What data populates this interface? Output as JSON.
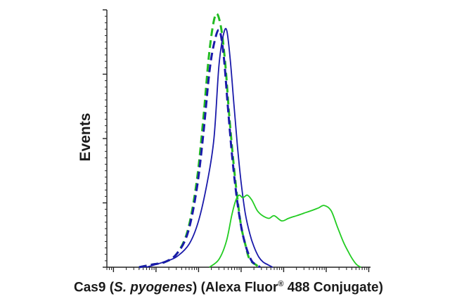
{
  "chart_data": {
    "type": "line",
    "title": "",
    "ylabel": "Events",
    "xlabel": {
      "prefix": "Cas9 (",
      "italic": "S. pyogenes",
      "middle": ") (Alexa Fluor",
      "sup": "®",
      "suffix": " 488 Conjugate)"
    },
    "x_scale": "log",
    "xlim": [
      0.7,
      1100000
    ],
    "ylim": [
      0,
      100
    ],
    "grid": false,
    "legend": "none",
    "series": [
      {
        "color": "#22bb22",
        "style": "dashed",
        "x": [
          4,
          8,
          16,
          30,
          55,
          90,
          130,
          180,
          250,
          330,
          420,
          520,
          650,
          800,
          1000,
          1250,
          1500,
          1800,
          2200,
          2700
        ],
        "y": [
          0,
          1,
          2,
          5,
          14,
          33,
          58,
          84,
          98,
          94,
          80,
          60,
          42,
          28,
          16,
          9,
          4,
          2,
          1,
          0
        ]
      },
      {
        "color": "#1a1aaa",
        "style": "dashed",
        "x": [
          4,
          8,
          16,
          30,
          55,
          90,
          130,
          180,
          240,
          310,
          390,
          480,
          600,
          750,
          950,
          1200,
          1500,
          1850,
          2300,
          2800
        ],
        "y": [
          0,
          1,
          2,
          5,
          13,
          30,
          52,
          76,
          88,
          92,
          82,
          64,
          45,
          30,
          18,
          10,
          5,
          2,
          1,
          0
        ]
      },
      {
        "color": "#1a1aaa",
        "style": "solid",
        "x": [
          6,
          15,
          30,
          60,
          100,
          160,
          230,
          300,
          380,
          460,
          560,
          680,
          820,
          1000,
          1250,
          1600,
          2000,
          2600,
          3300,
          4200,
          5500
        ],
        "y": [
          0,
          2,
          4,
          9,
          18,
          33,
          50,
          78,
          90,
          92,
          80,
          63,
          47,
          33,
          21,
          13,
          8,
          4,
          2,
          1,
          0
        ]
      },
      {
        "color": "#22cc22",
        "style": "solid",
        "x": [
          180,
          300,
          450,
          600,
          750,
          900,
          1100,
          1400,
          1800,
          2400,
          3200,
          4500,
          6000,
          9000,
          13000,
          20000,
          30000,
          45000,
          65000,
          90000,
          130000,
          180000,
          250000,
          330000,
          420000,
          520000,
          650000
        ],
        "y": [
          0,
          3,
          10,
          20,
          26,
          28,
          27,
          28,
          26,
          22,
          20,
          19,
          20,
          18,
          19,
          20,
          21,
          22,
          23,
          24,
          22,
          16,
          10,
          6,
          3,
          1,
          0
        ]
      }
    ]
  }
}
